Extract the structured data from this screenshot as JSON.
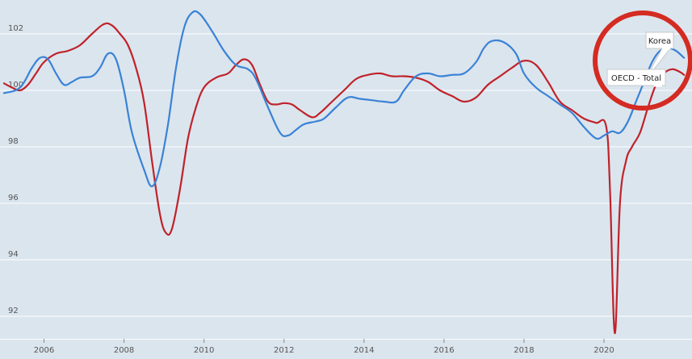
{
  "chart_data": {
    "type": "line",
    "title": "",
    "xlabel": "",
    "ylabel": "",
    "xlim": [
      2004.9,
      2022.2
    ],
    "ylim": [
      91.2,
      103.2
    ],
    "x_ticks": [
      "2006",
      "2008",
      "2010",
      "2012",
      "2014",
      "2016",
      "2018",
      "2020"
    ],
    "y_ticks": [
      "92",
      "94",
      "96",
      "98",
      "100",
      "102"
    ],
    "grid": true,
    "series": [
      {
        "name": "Korea",
        "color": "#3a82d6",
        "points": [
          [
            2005.0,
            99.9
          ],
          [
            2005.4,
            100.1
          ],
          [
            2005.7,
            100.8
          ],
          [
            2005.9,
            101.15
          ],
          [
            2006.1,
            101.1
          ],
          [
            2006.3,
            100.6
          ],
          [
            2006.5,
            100.2
          ],
          [
            2006.7,
            100.3
          ],
          [
            2006.9,
            100.45
          ],
          [
            2007.2,
            100.5
          ],
          [
            2007.4,
            100.8
          ],
          [
            2007.6,
            101.3
          ],
          [
            2007.8,
            101.1
          ],
          [
            2008.0,
            100.0
          ],
          [
            2008.2,
            98.5
          ],
          [
            2008.5,
            97.2
          ],
          [
            2008.7,
            96.6
          ],
          [
            2008.9,
            97.3
          ],
          [
            2009.1,
            98.8
          ],
          [
            2009.3,
            100.8
          ],
          [
            2009.5,
            102.2
          ],
          [
            2009.7,
            102.75
          ],
          [
            2009.9,
            102.7
          ],
          [
            2010.2,
            102.1
          ],
          [
            2010.5,
            101.4
          ],
          [
            2010.8,
            100.9
          ],
          [
            2011.1,
            100.75
          ],
          [
            2011.3,
            100.4
          ],
          [
            2011.6,
            99.4
          ],
          [
            2011.9,
            98.5
          ],
          [
            2012.1,
            98.4
          ],
          [
            2012.3,
            98.6
          ],
          [
            2012.5,
            98.8
          ],
          [
            2012.8,
            98.9
          ],
          [
            2013.0,
            99.0
          ],
          [
            2013.3,
            99.4
          ],
          [
            2013.6,
            99.75
          ],
          [
            2013.9,
            99.7
          ],
          [
            2014.2,
            99.65
          ],
          [
            2014.5,
            99.6
          ],
          [
            2014.8,
            99.6
          ],
          [
            2015.0,
            100.0
          ],
          [
            2015.3,
            100.5
          ],
          [
            2015.6,
            100.6
          ],
          [
            2015.9,
            100.5
          ],
          [
            2016.2,
            100.55
          ],
          [
            2016.5,
            100.6
          ],
          [
            2016.8,
            101.0
          ],
          [
            2017.0,
            101.5
          ],
          [
            2017.2,
            101.75
          ],
          [
            2017.5,
            101.7
          ],
          [
            2017.8,
            101.3
          ],
          [
            2018.0,
            100.6
          ],
          [
            2018.3,
            100.1
          ],
          [
            2018.6,
            99.8
          ],
          [
            2018.9,
            99.5
          ],
          [
            2019.2,
            99.2
          ],
          [
            2019.5,
            98.7
          ],
          [
            2019.8,
            98.3
          ],
          [
            2020.0,
            98.4
          ],
          [
            2020.2,
            98.55
          ],
          [
            2020.4,
            98.5
          ],
          [
            2020.6,
            98.9
          ],
          [
            2020.8,
            99.6
          ],
          [
            2021.0,
            100.3
          ],
          [
            2021.2,
            101.0
          ],
          [
            2021.4,
            101.4
          ],
          [
            2021.6,
            101.5
          ],
          [
            2021.8,
            101.4
          ],
          [
            2022.0,
            101.15
          ]
        ]
      },
      {
        "name": "OECD - Total",
        "color": "#c0222a",
        "points": [
          [
            2005.0,
            100.25
          ],
          [
            2005.2,
            100.1
          ],
          [
            2005.4,
            100.0
          ],
          [
            2005.6,
            100.2
          ],
          [
            2005.8,
            100.6
          ],
          [
            2006.0,
            101.0
          ],
          [
            2006.3,
            101.3
          ],
          [
            2006.6,
            101.4
          ],
          [
            2006.9,
            101.6
          ],
          [
            2007.2,
            102.0
          ],
          [
            2007.5,
            102.35
          ],
          [
            2007.7,
            102.3
          ],
          [
            2007.9,
            102.0
          ],
          [
            2008.1,
            101.6
          ],
          [
            2008.3,
            100.8
          ],
          [
            2008.5,
            99.6
          ],
          [
            2008.7,
            97.5
          ],
          [
            2008.9,
            95.6
          ],
          [
            2009.05,
            94.95
          ],
          [
            2009.2,
            95.1
          ],
          [
            2009.4,
            96.5
          ],
          [
            2009.6,
            98.3
          ],
          [
            2009.8,
            99.4
          ],
          [
            2010.0,
            100.1
          ],
          [
            2010.3,
            100.45
          ],
          [
            2010.6,
            100.6
          ],
          [
            2010.8,
            100.9
          ],
          [
            2011.0,
            101.1
          ],
          [
            2011.2,
            100.9
          ],
          [
            2011.4,
            100.2
          ],
          [
            2011.6,
            99.6
          ],
          [
            2011.8,
            99.5
          ],
          [
            2012.0,
            99.55
          ],
          [
            2012.2,
            99.5
          ],
          [
            2012.4,
            99.3
          ],
          [
            2012.7,
            99.05
          ],
          [
            2012.9,
            99.2
          ],
          [
            2013.2,
            99.6
          ],
          [
            2013.5,
            100.0
          ],
          [
            2013.8,
            100.4
          ],
          [
            2014.1,
            100.55
          ],
          [
            2014.4,
            100.6
          ],
          [
            2014.7,
            100.5
          ],
          [
            2015.0,
            100.5
          ],
          [
            2015.3,
            100.45
          ],
          [
            2015.6,
            100.3
          ],
          [
            2015.9,
            100.0
          ],
          [
            2016.2,
            99.8
          ],
          [
            2016.5,
            99.6
          ],
          [
            2016.8,
            99.75
          ],
          [
            2017.1,
            100.2
          ],
          [
            2017.4,
            100.5
          ],
          [
            2017.7,
            100.8
          ],
          [
            2018.0,
            101.05
          ],
          [
            2018.3,
            100.9
          ],
          [
            2018.6,
            100.3
          ],
          [
            2018.9,
            99.6
          ],
          [
            2019.2,
            99.3
          ],
          [
            2019.5,
            99.0
          ],
          [
            2019.8,
            98.85
          ],
          [
            2020.05,
            98.75
          ],
          [
            2020.15,
            96.5
          ],
          [
            2020.27,
            91.4
          ],
          [
            2020.4,
            96.0
          ],
          [
            2020.55,
            97.5
          ],
          [
            2020.7,
            98.0
          ],
          [
            2020.9,
            98.5
          ],
          [
            2021.1,
            99.4
          ],
          [
            2021.3,
            100.2
          ],
          [
            2021.5,
            100.6
          ],
          [
            2021.7,
            100.75
          ],
          [
            2021.9,
            100.65
          ],
          [
            2022.0,
            100.55
          ]
        ]
      }
    ],
    "highlight_circle": {
      "color": "#d42b22"
    }
  }
}
